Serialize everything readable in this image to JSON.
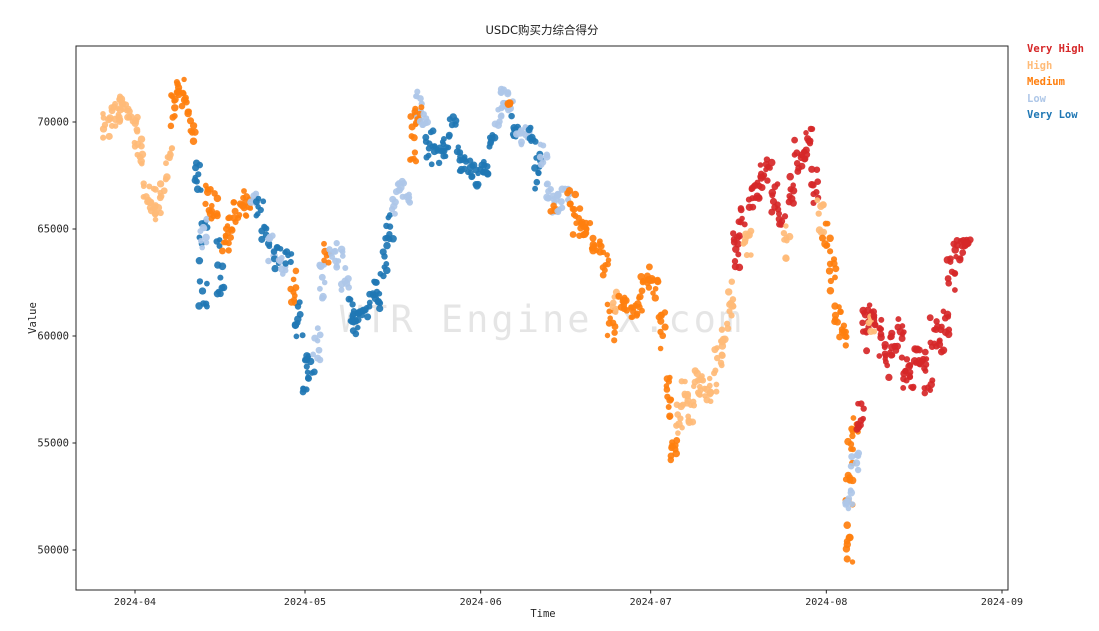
{
  "chart_data": {
    "type": "scatter",
    "title": "USDC购买力综合得分",
    "xlabel": "Time",
    "ylabel": "Value",
    "watermark": "WTR Engine X.com",
    "grid": false,
    "legend_position": "outside-right-top",
    "x_ticks": [
      "2024-04",
      "2024-05",
      "2024-06",
      "2024-07",
      "2024-08",
      "2024-09"
    ],
    "y_ticks": [
      50000,
      55000,
      60000,
      65000,
      70000
    ],
    "ylim": [
      48100,
      73500
    ],
    "xlim": [
      "2024-03-21",
      "2024-09-02"
    ],
    "legend": [
      {
        "label": "Very High",
        "code": "VH",
        "color": "#d62728"
      },
      {
        "label": "High",
        "code": "H",
        "color": "#ffbb78"
      },
      {
        "label": "Medium",
        "code": "M",
        "color": "#ff7f0e"
      },
      {
        "label": "Low",
        "code": "L",
        "color": "#aec7e8"
      },
      {
        "label": "Very Low",
        "code": "VL",
        "color": "#1f77b4"
      }
    ],
    "points_format": [
      "date(2024)",
      "value_center",
      "value_half_spread",
      "category_code"
    ],
    "points": [
      [
        "03-27",
        69800,
        600,
        "H"
      ],
      [
        "03-28",
        70300,
        500,
        "H"
      ],
      [
        "03-29",
        70600,
        600,
        "H"
      ],
      [
        "03-30",
        71000,
        550,
        "H"
      ],
      [
        "03-31",
        70400,
        500,
        "H"
      ],
      [
        "04-01",
        69600,
        800,
        "H"
      ],
      [
        "04-02",
        68600,
        700,
        "H"
      ],
      [
        "04-03",
        66900,
        700,
        "H"
      ],
      [
        "04-04",
        66300,
        600,
        "H"
      ],
      [
        "04-05",
        65900,
        500,
        "H"
      ],
      [
        "04-06",
        67000,
        600,
        "H"
      ],
      [
        "04-07",
        68400,
        600,
        "H"
      ],
      [
        "04-08",
        70700,
        900,
        "M"
      ],
      [
        "04-09",
        71800,
        650,
        "M"
      ],
      [
        "04-10",
        70900,
        600,
        "M"
      ],
      [
        "04-11",
        69800,
        700,
        "M"
      ],
      [
        "04-12",
        67700,
        900,
        "VL"
      ],
      [
        "04-13",
        63400,
        2100,
        "VL"
      ],
      [
        "04-13",
        64800,
        700,
        "L"
      ],
      [
        "04-14",
        66300,
        800,
        "M"
      ],
      [
        "04-15",
        66000,
        700,
        "M"
      ],
      [
        "04-16",
        63200,
        1300,
        "VL"
      ],
      [
        "04-17",
        64400,
        700,
        "M"
      ],
      [
        "04-18",
        65200,
        600,
        "M"
      ],
      [
        "04-19",
        65800,
        550,
        "M"
      ],
      [
        "04-20",
        66300,
        500,
        "M"
      ],
      [
        "04-21",
        66000,
        450,
        "M"
      ],
      [
        "04-22",
        66400,
        300,
        "L"
      ],
      [
        "04-23",
        66000,
        500,
        "VL"
      ],
      [
        "04-24",
        64500,
        700,
        "VL"
      ],
      [
        "04-25",
        64100,
        600,
        "L"
      ],
      [
        "04-26",
        63700,
        650,
        "VL"
      ],
      [
        "04-27",
        63300,
        500,
        "L"
      ],
      [
        "04-28",
        63500,
        450,
        "VL"
      ],
      [
        "04-29",
        62300,
        900,
        "M"
      ],
      [
        "04-30",
        60800,
        1000,
        "VL"
      ],
      [
        "05-01",
        57800,
        1100,
        "VL"
      ],
      [
        "05-02",
        58400,
        700,
        "VL"
      ],
      [
        "05-03",
        59600,
        800,
        "L"
      ],
      [
        "05-04",
        62600,
        900,
        "L"
      ],
      [
        "05-05",
        63900,
        500,
        "M"
      ],
      [
        "05-06",
        64100,
        450,
        "L"
      ],
      [
        "05-07",
        63600,
        500,
        "L"
      ],
      [
        "05-08",
        62700,
        550,
        "L"
      ],
      [
        "05-09",
        61300,
        700,
        "VL"
      ],
      [
        "05-10",
        60600,
        650,
        "VL"
      ],
      [
        "05-11",
        60900,
        350,
        "VL"
      ],
      [
        "05-12",
        61200,
        350,
        "VL"
      ],
      [
        "05-13",
        62000,
        700,
        "VL"
      ],
      [
        "05-14",
        61600,
        600,
        "VL"
      ],
      [
        "05-15",
        63700,
        900,
        "VL"
      ],
      [
        "05-16",
        65100,
        700,
        "VL"
      ],
      [
        "05-17",
        66300,
        600,
        "L"
      ],
      [
        "05-18",
        66900,
        400,
        "L"
      ],
      [
        "05-19",
        66500,
        350,
        "L"
      ],
      [
        "05-20",
        69300,
        1300,
        "M"
      ],
      [
        "05-21",
        70800,
        750,
        "L"
      ],
      [
        "05-21",
        70200,
        500,
        "M"
      ],
      [
        "05-22",
        69900,
        500,
        "L"
      ],
      [
        "05-23",
        68900,
        700,
        "VL"
      ],
      [
        "05-24",
        68400,
        500,
        "VL"
      ],
      [
        "05-25",
        68900,
        400,
        "VL"
      ],
      [
        "05-26",
        68700,
        350,
        "VL"
      ],
      [
        "05-27",
        69800,
        550,
        "VL"
      ],
      [
        "05-28",
        68300,
        600,
        "VL"
      ],
      [
        "05-29",
        68100,
        450,
        "VL"
      ],
      [
        "05-30",
        67800,
        450,
        "VL"
      ],
      [
        "05-31",
        67500,
        500,
        "VL"
      ],
      [
        "06-01",
        67800,
        350,
        "VL"
      ],
      [
        "06-02",
        67900,
        350,
        "VL"
      ],
      [
        "06-03",
        68900,
        600,
        "VL"
      ],
      [
        "06-04",
        70400,
        650,
        "L"
      ],
      [
        "06-05",
        71200,
        600,
        "L"
      ],
      [
        "06-06",
        70900,
        500,
        "L"
      ],
      [
        "06-06",
        70800,
        150,
        "M"
      ],
      [
        "06-07",
        69600,
        800,
        "VL"
      ],
      [
        "06-08",
        69300,
        400,
        "L"
      ],
      [
        "06-09",
        69600,
        350,
        "L"
      ],
      [
        "06-10",
        69500,
        500,
        "VL"
      ],
      [
        "06-11",
        67700,
        900,
        "VL"
      ],
      [
        "06-12",
        68300,
        650,
        "L"
      ],
      [
        "06-13",
        66900,
        600,
        "L"
      ],
      [
        "06-14",
        66200,
        500,
        "L"
      ],
      [
        "06-14",
        66000,
        200,
        "M"
      ],
      [
        "06-15",
        66200,
        400,
        "L"
      ],
      [
        "06-16",
        66500,
        400,
        "L"
      ],
      [
        "06-17",
        66300,
        500,
        "M"
      ],
      [
        "06-18",
        65300,
        700,
        "M"
      ],
      [
        "06-19",
        64900,
        500,
        "M"
      ],
      [
        "06-20",
        64900,
        400,
        "M"
      ],
      [
        "06-21",
        64200,
        500,
        "M"
      ],
      [
        "06-22",
        64300,
        400,
        "M"
      ],
      [
        "06-23",
        63300,
        600,
        "M"
      ],
      [
        "06-24",
        60500,
        1200,
        "M"
      ],
      [
        "06-25",
        61600,
        600,
        "H"
      ],
      [
        "06-26",
        61800,
        500,
        "M"
      ],
      [
        "06-27",
        61600,
        450,
        "M"
      ],
      [
        "06-28",
        61200,
        500,
        "M"
      ],
      [
        "06-29",
        61500,
        400,
        "M"
      ],
      [
        "06-30",
        62600,
        500,
        "M"
      ],
      [
        "07-01",
        62900,
        450,
        "M"
      ],
      [
        "07-02",
        62200,
        500,
        "M"
      ],
      [
        "07-03",
        60300,
        900,
        "M"
      ],
      [
        "07-04",
        57300,
        1100,
        "M"
      ],
      [
        "07-05",
        55300,
        1100,
        "M"
      ],
      [
        "07-06",
        56100,
        800,
        "H"
      ],
      [
        "07-07",
        57400,
        700,
        "H"
      ],
      [
        "07-08",
        56600,
        700,
        "H"
      ],
      [
        "07-09",
        57800,
        600,
        "H"
      ],
      [
        "07-10",
        57700,
        500,
        "H"
      ],
      [
        "07-11",
        57300,
        500,
        "H"
      ],
      [
        "07-12",
        57900,
        550,
        "H"
      ],
      [
        "07-13",
        58900,
        550,
        "H"
      ],
      [
        "07-14",
        60300,
        800,
        "H"
      ],
      [
        "07-15",
        61800,
        900,
        "H"
      ],
      [
        "07-16",
        63900,
        900,
        "VH"
      ],
      [
        "07-17",
        65200,
        800,
        "VH"
      ],
      [
        "07-18",
        64400,
        900,
        "H"
      ],
      [
        "07-19",
        66500,
        700,
        "VH"
      ],
      [
        "07-20",
        66900,
        500,
        "VH"
      ],
      [
        "07-21",
        67400,
        600,
        "VH"
      ],
      [
        "07-22",
        67800,
        600,
        "VH"
      ],
      [
        "07-23",
        66300,
        800,
        "VH"
      ],
      [
        "07-24",
        65600,
        600,
        "VH"
      ],
      [
        "07-25",
        64400,
        800,
        "H"
      ],
      [
        "07-26",
        66800,
        700,
        "VH"
      ],
      [
        "07-27",
        68400,
        800,
        "VH"
      ],
      [
        "07-28",
        68200,
        550,
        "VH"
      ],
      [
        "07-29",
        69400,
        600,
        "VH"
      ],
      [
        "07-30",
        67100,
        900,
        "VH"
      ],
      [
        "07-31",
        65600,
        800,
        "H"
      ],
      [
        "08-01",
        64600,
        700,
        "M"
      ],
      [
        "08-02",
        62800,
        800,
        "M"
      ],
      [
        "08-03",
        61300,
        700,
        "M"
      ],
      [
        "08-04",
        59500,
        1000,
        "M"
      ],
      [
        "08-05",
        53400,
        2300,
        "M"
      ],
      [
        "08-05",
        50200,
        800,
        "M"
      ],
      [
        "08-05",
        52300,
        700,
        "L"
      ],
      [
        "08-06",
        54100,
        500,
        "L"
      ],
      [
        "08-06",
        55600,
        900,
        "M"
      ],
      [
        "08-07",
        55900,
        1000,
        "VH"
      ],
      [
        "08-08",
        60400,
        1100,
        "VH"
      ],
      [
        "08-09",
        61000,
        600,
        "VH"
      ],
      [
        "08-09",
        60600,
        400,
        "H"
      ],
      [
        "08-10",
        60700,
        500,
        "VH"
      ],
      [
        "08-11",
        59700,
        700,
        "VH"
      ],
      [
        "08-12",
        58700,
        700,
        "VH"
      ],
      [
        "08-13",
        59600,
        600,
        "VH"
      ],
      [
        "08-14",
        60400,
        550,
        "VH"
      ],
      [
        "08-15",
        58400,
        900,
        "VH"
      ],
      [
        "08-16",
        58100,
        700,
        "VH"
      ],
      [
        "08-17",
        59100,
        450,
        "VH"
      ],
      [
        "08-18",
        58800,
        500,
        "VH"
      ],
      [
        "08-19",
        58200,
        900,
        "VH"
      ],
      [
        "08-20",
        60100,
        800,
        "VH"
      ],
      [
        "08-21",
        59800,
        600,
        "VH"
      ],
      [
        "08-22",
        60700,
        700,
        "VH"
      ],
      [
        "08-23",
        62900,
        900,
        "VH"
      ],
      [
        "08-24",
        64000,
        500,
        "VH"
      ],
      [
        "08-25",
        64200,
        400,
        "VH"
      ],
      [
        "08-26",
        64300,
        300,
        "VH"
      ]
    ]
  }
}
